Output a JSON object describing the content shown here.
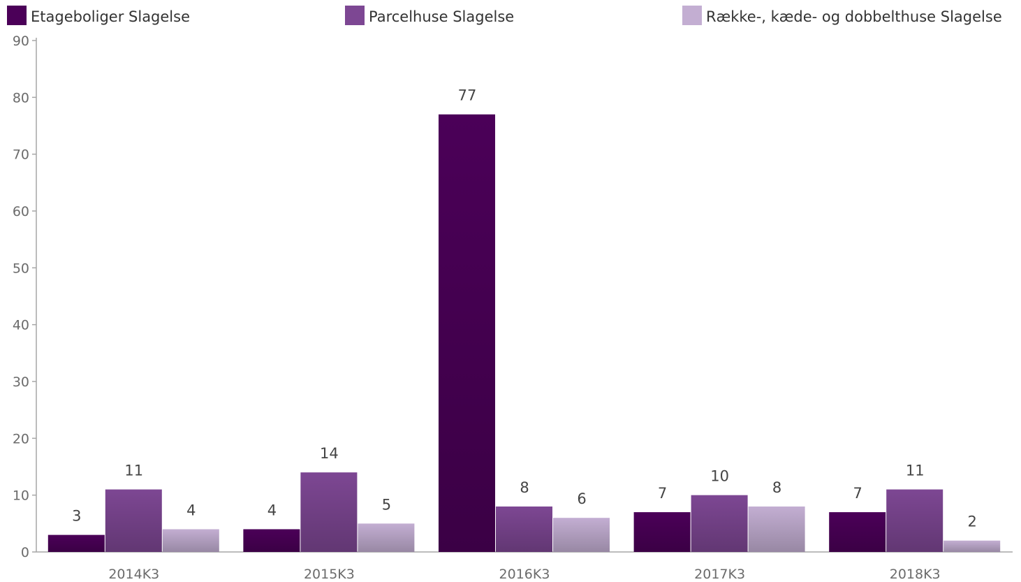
{
  "chart_data": {
    "type": "bar",
    "categories": [
      "2014K3",
      "2015K3",
      "2016K3",
      "2017K3",
      "2018K3"
    ],
    "series": [
      {
        "name": "Etageboliger Slagelse",
        "values": [
          3,
          4,
          77,
          7,
          7
        ],
        "color": "#4b0058"
      },
      {
        "name": "Parcelhuse Slagelse",
        "values": [
          11,
          14,
          8,
          10,
          11
        ],
        "color": "#7d4793"
      },
      {
        "name": "Række-, kæde- og dobbelthuse Slagelse",
        "values": [
          4,
          5,
          6,
          8,
          2
        ],
        "color": "#c3aed2"
      }
    ],
    "yticks": [
      "0",
      "10",
      "20",
      "30",
      "40",
      "50",
      "60",
      "70",
      "80",
      "90"
    ],
    "ylim": [
      0,
      90
    ],
    "legend_position": "top",
    "grid": false
  }
}
